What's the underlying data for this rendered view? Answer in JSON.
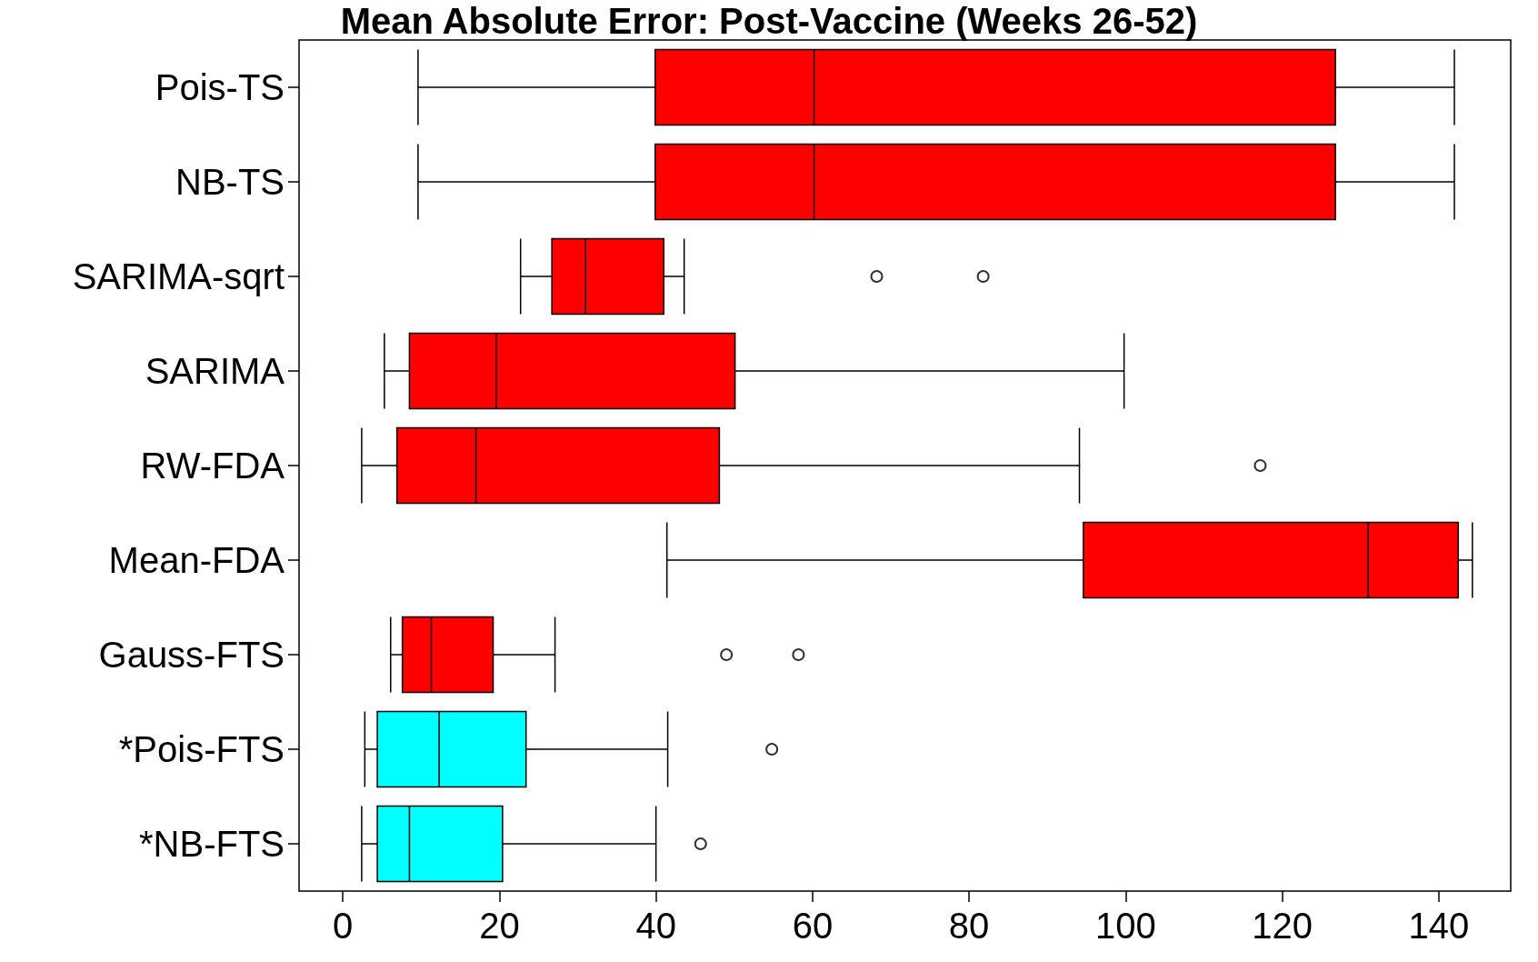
{
  "chart_data": {
    "type": "box",
    "title": "Mean Absolute Error: Post-Vaccine (Weeks 26-52)",
    "orientation": "horizontal",
    "categories": [
      "Pois-TS",
      "NB-TS",
      "SARIMA-sqrt",
      "SARIMA",
      "RW-FDA",
      "Mean-FDA",
      "Gauss-FTS",
      "*Pois-FTS",
      "*NB-FTS"
    ],
    "boxes": [
      {
        "low": 9.6,
        "q1": 39.9,
        "median": 60.2,
        "q3": 126.8,
        "high": 142.0
      },
      {
        "low": 9.6,
        "q1": 39.9,
        "median": 60.2,
        "q3": 126.8,
        "high": 142.0
      },
      {
        "low": 22.7,
        "q1": 26.7,
        "median": 31.0,
        "q3": 41.0,
        "high": 43.6,
        "outliers": [
          68.2,
          81.8
        ]
      },
      {
        "low": 5.3,
        "q1": 8.5,
        "median": 19.6,
        "q3": 50.1,
        "high": 99.8
      },
      {
        "low": 2.4,
        "q1": 6.9,
        "median": 17.0,
        "q3": 48.1,
        "high": 94.1,
        "outliers": [
          117.2
        ]
      },
      {
        "low": 41.4,
        "q1": 94.6,
        "median": 131.0,
        "q3": 142.5,
        "high": 144.3
      },
      {
        "low": 6.1,
        "q1": 7.6,
        "median": 11.3,
        "q3": 19.2,
        "high": 27.1,
        "outliers": [
          49.0,
          58.2
        ]
      },
      {
        "low": 2.8,
        "q1": 4.4,
        "median": 12.3,
        "q3": 23.4,
        "high": 41.5,
        "outliers": [
          54.8
        ]
      },
      {
        "low": 2.4,
        "q1": 4.4,
        "median": 8.5,
        "q3": 20.4,
        "high": 40.0,
        "outliers": [
          45.7
        ]
      }
    ],
    "colors": [
      "#ff0000",
      "#ff0000",
      "#ff0000",
      "#ff0000",
      "#ff0000",
      "#ff0000",
      "#ff0000",
      "#00ffff",
      "#00ffff"
    ],
    "xlim": [
      -5.6,
      149.2
    ],
    "xticks": [
      0,
      20,
      40,
      60,
      80,
      100,
      120,
      140
    ],
    "grid": false
  }
}
